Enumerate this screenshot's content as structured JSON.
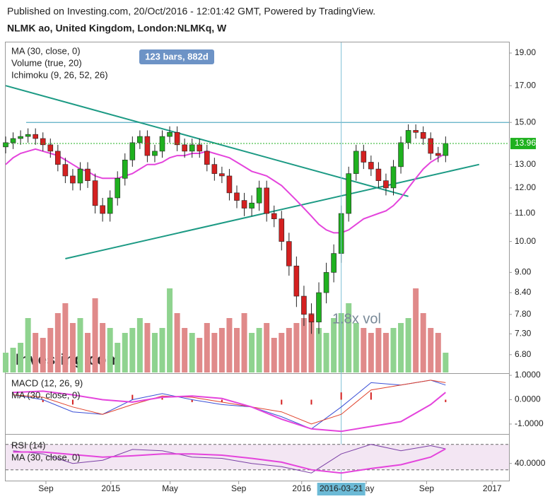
{
  "header": {
    "published": "Published on Investing.com, 20/Oct/2016 - 12:01:42 GMT, Powered by TradingView.",
    "symbol": "NLMK ao, United Kingdom, London:NLMKq, W",
    "logo": "Investing.com"
  },
  "chart_data": [
    {
      "type": "candlestick",
      "legend": [
        "MA (30, close, 0)",
        "Volume (true, 20)",
        "Ichimoku (9, 26, 52, 26)"
      ],
      "badge": "123 bars, 882d",
      "annotation": "1.8x vol",
      "crosshair": {
        "x": 90,
        "label": "2016-03-21"
      },
      "x": [
        0,
        2,
        4,
        6,
        8,
        10,
        12,
        14,
        16,
        18,
        20,
        22,
        24,
        26,
        28,
        30,
        32,
        34,
        36,
        38,
        40,
        42,
        44,
        46,
        48,
        50,
        52,
        54,
        56,
        58,
        60,
        62,
        64,
        66,
        68,
        70,
        72,
        74,
        76,
        78,
        80,
        82,
        84,
        86,
        88,
        90,
        92,
        94,
        96,
        98,
        100,
        102,
        104,
        106,
        108,
        110,
        112,
        114,
        116,
        118
      ],
      "open": [
        13.8,
        14.0,
        14.2,
        14.3,
        14.4,
        14.2,
        13.9,
        13.6,
        13.0,
        12.5,
        12.2,
        12.8,
        12.3,
        11.3,
        11.0,
        11.6,
        12.4,
        13.2,
        14.0,
        14.3,
        13.4,
        13.6,
        14.3,
        14.5,
        13.9,
        13.6,
        13.9,
        13.6,
        13.0,
        12.6,
        12.5,
        11.8,
        11.5,
        11.2,
        11.4,
        12.0,
        11.0,
        10.8,
        10.0,
        9.2,
        8.3,
        7.8,
        7.6,
        8.4,
        9.0,
        9.6,
        11.0,
        12.6,
        13.6,
        13.1,
        12.8,
        12.3,
        12.0,
        12.9,
        14.0,
        14.6,
        14.5,
        14.2,
        13.5,
        13.4
      ],
      "high": [
        14.3,
        14.5,
        14.6,
        14.7,
        14.7,
        14.5,
        14.2,
        13.9,
        13.3,
        12.8,
        13.1,
        13.1,
        12.6,
        11.6,
        11.9,
        12.7,
        13.5,
        14.3,
        14.6,
        14.6,
        13.9,
        14.6,
        14.8,
        14.8,
        14.2,
        14.2,
        14.2,
        13.9,
        13.3,
        12.9,
        12.8,
        12.1,
        11.8,
        11.7,
        12.3,
        12.3,
        11.3,
        11.1,
        10.3,
        9.5,
        8.6,
        8.1,
        8.7,
        9.3,
        9.9,
        11.3,
        12.9,
        13.9,
        13.9,
        13.4,
        13.1,
        12.6,
        13.2,
        14.3,
        14.9,
        14.9,
        14.8,
        14.5,
        13.8,
        14.3
      ],
      "low": [
        13.5,
        13.7,
        13.9,
        14.0,
        13.9,
        13.6,
        13.3,
        12.7,
        12.2,
        11.9,
        11.9,
        12.0,
        11.0,
        10.7,
        10.7,
        11.3,
        12.1,
        12.9,
        13.7,
        13.1,
        13.1,
        13.3,
        14.0,
        13.6,
        13.3,
        13.3,
        13.3,
        12.7,
        12.3,
        12.2,
        11.5,
        11.2,
        10.9,
        10.9,
        11.1,
        10.7,
        10.5,
        9.7,
        8.9,
        8.0,
        7.5,
        7.3,
        7.3,
        8.1,
        8.7,
        9.3,
        10.7,
        12.3,
        12.8,
        12.5,
        12.0,
        11.7,
        11.7,
        12.6,
        13.7,
        14.2,
        13.9,
        13.2,
        13.1,
        13.1
      ],
      "close": [
        14.0,
        14.2,
        14.3,
        14.4,
        14.2,
        13.9,
        13.6,
        13.0,
        12.5,
        12.2,
        12.8,
        12.3,
        11.3,
        11.0,
        11.6,
        12.4,
        13.2,
        14.0,
        14.3,
        13.4,
        13.6,
        14.3,
        14.5,
        13.9,
        13.6,
        13.9,
        13.6,
        13.0,
        12.6,
        12.5,
        11.8,
        11.5,
        11.2,
        11.4,
        12.0,
        11.0,
        10.8,
        10.0,
        9.2,
        8.3,
        7.8,
        7.6,
        8.4,
        9.0,
        9.6,
        11.0,
        12.6,
        13.6,
        13.1,
        12.8,
        12.3,
        12.0,
        12.9,
        14.0,
        14.6,
        14.5,
        14.2,
        13.5,
        13.4,
        13.96
      ],
      "up_color": "#1fb11f",
      "down_color": "#d42020",
      "volume": {
        "values": [
          20,
          25,
          30,
          55,
          40,
          35,
          45,
          60,
          70,
          50,
          55,
          40,
          75,
          50,
          45,
          30,
          40,
          45,
          55,
          50,
          40,
          45,
          85,
          60,
          45,
          40,
          35,
          50,
          40,
          45,
          55,
          45,
          60,
          40,
          45,
          50,
          35,
          40,
          45,
          50,
          55,
          60,
          45,
          40,
          55,
          60,
          70,
          50,
          45,
          40,
          45,
          40,
          45,
          50,
          55,
          85,
          60,
          45,
          40,
          20
        ],
        "vlim": [
          0,
          100
        ],
        "up_color": "#8fd38f",
        "down_color": "#e08a8a"
      },
      "ma": {
        "color": "#e444dc",
        "values": [
          13.0,
          13.3,
          13.5,
          13.6,
          13.7,
          13.6,
          13.5,
          13.4,
          13.2,
          13.0,
          12.8,
          12.7,
          12.5,
          12.4,
          12.4,
          12.4,
          12.5,
          12.6,
          12.8,
          13.0,
          13.0,
          13.1,
          13.3,
          13.4,
          13.4,
          13.5,
          13.5,
          13.6,
          13.5,
          13.4,
          13.3,
          13.1,
          12.9,
          12.7,
          12.6,
          12.5,
          12.3,
          12.1,
          11.8,
          11.5,
          11.2,
          10.9,
          10.6,
          10.4,
          10.3,
          10.3,
          10.4,
          10.6,
          10.8,
          10.9,
          11.0,
          11.1,
          11.3,
          11.6,
          12.0,
          12.4,
          12.8,
          13.1,
          13.3,
          13.5
        ]
      },
      "trendlines": [
        {
          "x": [
            0,
            108
          ],
          "values": [
            17.0,
            11.66
          ],
          "color": "#1c9a84"
        },
        {
          "x": [
            16,
            127
          ],
          "values": [
            9.43,
            13.0
          ],
          "color": "#1c9a84"
        }
      ],
      "hline": {
        "value": 15,
        "x_start": 5.5,
        "color": "#5aaec4"
      },
      "log": true,
      "ylim": [
        6.4,
        19.7
      ],
      "yticks": [
        {
          "value": 19,
          "label": "19.00"
        },
        {
          "value": 17,
          "label": "17.00"
        },
        {
          "value": 15,
          "label": "15.00"
        },
        {
          "value": 13,
          "label": "13.00"
        },
        {
          "value": 12,
          "label": "12.00"
        },
        {
          "value": 11,
          "label": "11.00"
        },
        {
          "value": 10,
          "label": "10.00"
        },
        {
          "value": 9,
          "label": "9.00"
        },
        {
          "value": 8.4,
          "label": "8.40"
        },
        {
          "value": 7.8,
          "label": "7.80"
        },
        {
          "value": 7.3,
          "label": "7.30"
        },
        {
          "value": 6.8,
          "label": "6.80"
        }
      ],
      "xlim": [
        0,
        135
      ],
      "xticks": [
        {
          "value": 10.8,
          "label": "Sep"
        },
        {
          "value": 28.2,
          "label": "2015"
        },
        {
          "value": 44.1,
          "label": "May"
        },
        {
          "value": 62.5,
          "label": "Sep"
        },
        {
          "value": 79.4,
          "label": "2016"
        },
        {
          "value": 96.7,
          "label": "May"
        },
        {
          "value": 112.9,
          "label": "Sep"
        },
        {
          "value": 130.5,
          "label": "2017"
        }
      ]
    },
    {
      "type": "macd",
      "legend": [
        "MACD (12, 26, 9)",
        "MA (30, close, 0)"
      ],
      "x": [
        2,
        10,
        18,
        26,
        34,
        42,
        50,
        58,
        66,
        74,
        82,
        90,
        98,
        106,
        114,
        118
      ],
      "series": [
        {
          "color": "#3a4fd6",
          "values": [
            0.2,
            0.0,
            -0.5,
            -0.6,
            0.0,
            0.25,
            0.0,
            -0.2,
            -0.3,
            -0.7,
            -1.2,
            -0.3,
            0.7,
            0.6,
            0.8,
            0.6
          ]
        },
        {
          "color": "#e0422c",
          "values": [
            0.2,
            0.1,
            -0.3,
            -0.6,
            -0.2,
            0.15,
            0.1,
            -0.1,
            -0.3,
            -0.5,
            -1.0,
            -0.6,
            0.4,
            0.6,
            0.8,
            0.7
          ]
        },
        {
          "color": "#e444dc",
          "values": [
            0.3,
            0.35,
            0.2,
            0.0,
            -0.1,
            0.1,
            0.15,
            0.05,
            -0.3,
            -0.8,
            -1.2,
            -1.3,
            -1.1,
            -0.9,
            -0.2,
            0.3
          ]
        }
      ],
      "histogram": {
        "color": "#d42020",
        "values": [
          0.0,
          -0.1,
          -0.2,
          0.0,
          0.2,
          0.1,
          -0.1,
          -0.1,
          0.0,
          -0.2,
          -0.2,
          0.3,
          0.3,
          0.0,
          0.0,
          -0.1
        ]
      },
      "ylim": [
        -1.35,
        1.03
      ],
      "yticks": [
        {
          "value": 1,
          "label": "1.0000"
        },
        {
          "value": 0,
          "label": "0.0000"
        },
        {
          "value": -1,
          "label": "-1.0000"
        }
      ]
    },
    {
      "type": "rsi",
      "legend": [
        "RSI (14)",
        "MA (30, close, 0)"
      ],
      "x": [
        2,
        10,
        18,
        26,
        34,
        42,
        50,
        58,
        66,
        74,
        82,
        90,
        98,
        106,
        114,
        118
      ],
      "series": [
        {
          "color": "#7b3fa6",
          "values": [
            60,
            55,
            40,
            45,
            62,
            60,
            50,
            48,
            40,
            35,
            25,
            55,
            70,
            60,
            68,
            63
          ]
        },
        {
          "color": "#e444dc",
          "values": [
            58,
            58,
            54,
            50,
            52,
            55,
            55,
            53,
            48,
            42,
            30,
            25,
            32,
            38,
            50,
            63
          ]
        }
      ],
      "bands": [
        30,
        70
      ],
      "band_color": "#f3e6f3",
      "ylim": [
        13,
        83
      ],
      "yticks": [
        {
          "value": 40,
          "label": "40.0000"
        }
      ]
    }
  ]
}
